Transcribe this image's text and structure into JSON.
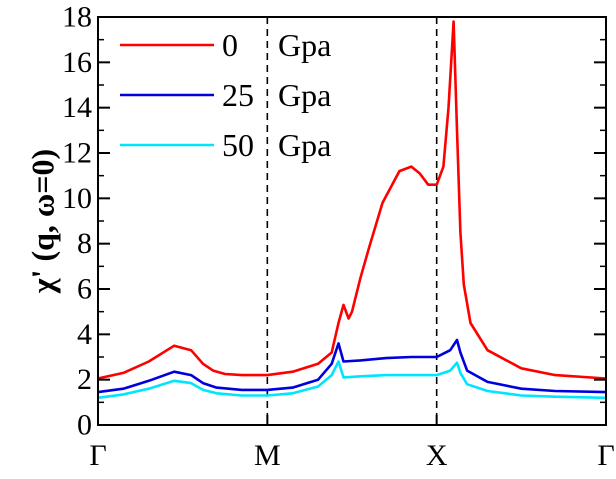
{
  "chart_data": {
    "type": "line",
    "title": "",
    "xlabel": "",
    "ylabel": "χ' (q, ω=0)",
    "ylim": [
      0,
      18
    ],
    "yticks": [
      0,
      2,
      4,
      6,
      8,
      10,
      12,
      14,
      16,
      18
    ],
    "xlim": [
      0,
      3
    ],
    "xtick_positions": [
      0,
      1,
      2,
      3
    ],
    "xtick_labels": [
      "Γ",
      "M",
      "X",
      "Γ"
    ],
    "vlines": [
      1,
      2
    ],
    "legend": "top-left",
    "grid": false,
    "series": [
      {
        "name": "0",
        "name_suffix": "Gpa",
        "color": "#ff0000",
        "x": [
          0,
          0.15,
          0.3,
          0.45,
          0.55,
          0.62,
          0.68,
          0.75,
          0.85,
          1.0,
          1.15,
          1.3,
          1.38,
          1.42,
          1.45,
          1.48,
          1.5,
          1.55,
          1.6,
          1.68,
          1.78,
          1.85,
          1.9,
          1.95,
          2.0,
          2.04,
          2.07,
          2.1,
          2.12,
          2.14,
          2.16,
          2.2,
          2.3,
          2.5,
          2.7,
          3.0
        ],
        "y": [
          2.05,
          2.3,
          2.8,
          3.5,
          3.3,
          2.7,
          2.4,
          2.25,
          2.2,
          2.2,
          2.35,
          2.7,
          3.2,
          4.5,
          5.3,
          4.7,
          5.0,
          6.5,
          7.8,
          9.8,
          11.2,
          11.4,
          11.1,
          10.6,
          10.6,
          11.4,
          14.0,
          17.8,
          13.0,
          8.5,
          6.2,
          4.5,
          3.3,
          2.5,
          2.2,
          2.05
        ]
      },
      {
        "name": "25",
        "name_suffix": "Gpa",
        "color": "#0000dd",
        "x": [
          0,
          0.15,
          0.3,
          0.45,
          0.55,
          0.62,
          0.7,
          0.85,
          1.0,
          1.15,
          1.3,
          1.38,
          1.42,
          1.45,
          1.55,
          1.7,
          1.85,
          2.0,
          2.08,
          2.12,
          2.14,
          2.18,
          2.3,
          2.5,
          2.7,
          3.0
        ],
        "y": [
          1.45,
          1.6,
          1.95,
          2.35,
          2.2,
          1.85,
          1.65,
          1.55,
          1.55,
          1.65,
          2.0,
          2.7,
          3.6,
          2.8,
          2.85,
          2.95,
          3.0,
          3.0,
          3.3,
          3.75,
          3.2,
          2.4,
          1.9,
          1.6,
          1.5,
          1.45
        ]
      },
      {
        "name": "50",
        "name_suffix": "Gpa",
        "color": "#00e5ff",
        "x": [
          0,
          0.15,
          0.3,
          0.45,
          0.55,
          0.62,
          0.7,
          0.85,
          1.0,
          1.15,
          1.3,
          1.38,
          1.42,
          1.45,
          1.55,
          1.7,
          1.85,
          2.0,
          2.08,
          2.12,
          2.14,
          2.18,
          2.3,
          2.5,
          2.7,
          3.0
        ],
        "y": [
          1.2,
          1.35,
          1.6,
          1.95,
          1.85,
          1.55,
          1.4,
          1.3,
          1.3,
          1.4,
          1.7,
          2.2,
          2.8,
          2.1,
          2.15,
          2.2,
          2.2,
          2.2,
          2.4,
          2.75,
          2.3,
          1.8,
          1.5,
          1.3,
          1.25,
          1.2
        ]
      }
    ]
  }
}
